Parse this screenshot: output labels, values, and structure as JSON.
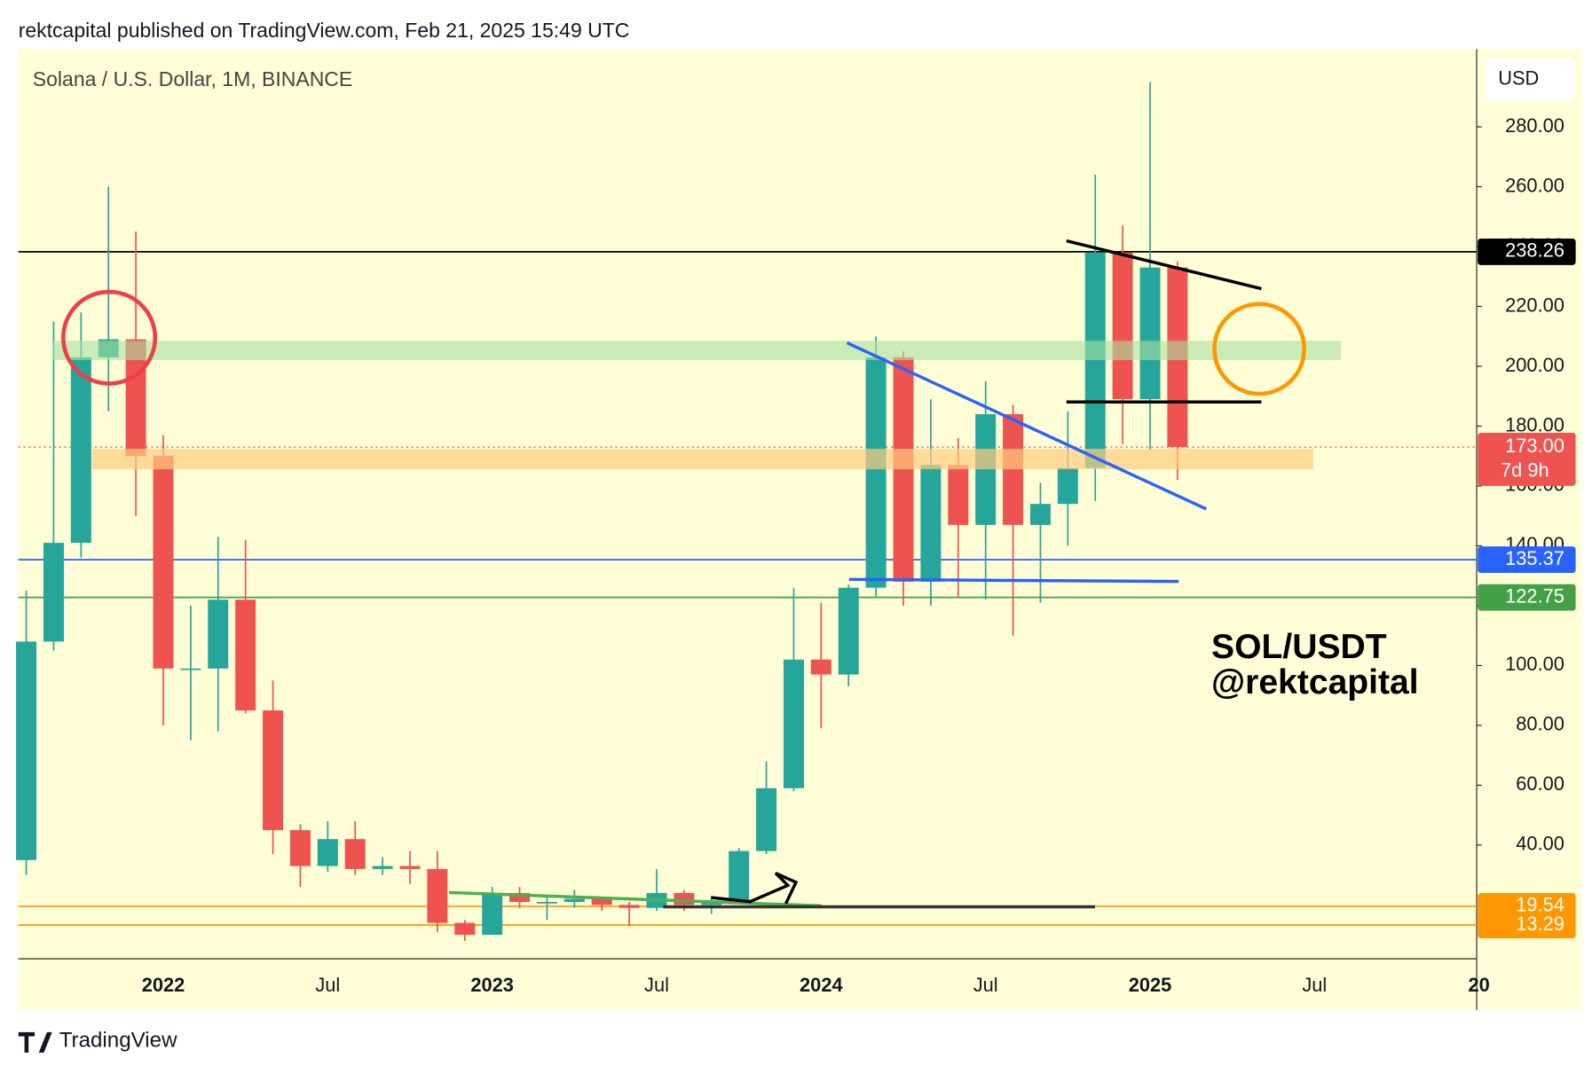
{
  "header": "rektcapital published on TradingView.com, Feb 21, 2025 15:49 UTC",
  "footer": "TradingView",
  "chart_data": {
    "type": "candlestick",
    "title": "Solana / U.S. Dollar, 1M, BINANCE",
    "currency": "USD",
    "annotations": [
      "SOL/USDT",
      "@rektcapital"
    ],
    "countdown": "7d 9h",
    "up_color": "#26a69a",
    "down_color": "#ef5350",
    "x": [
      "2021-08",
      "2021-09",
      "2021-10",
      "2021-11",
      "2021-12",
      "2022-01",
      "2022-02",
      "2022-03",
      "2022-04",
      "2022-05",
      "2022-06",
      "2022-07",
      "2022-08",
      "2022-09",
      "2022-10",
      "2022-11",
      "2022-12",
      "2023-01",
      "2023-02",
      "2023-03",
      "2023-04",
      "2023-05",
      "2023-06",
      "2023-07",
      "2023-08",
      "2023-09",
      "2023-10",
      "2023-11",
      "2023-12",
      "2024-01",
      "2024-02",
      "2024-03",
      "2024-04",
      "2024-05",
      "2024-06",
      "2024-07",
      "2024-08",
      "2024-09",
      "2024-10",
      "2024-11",
      "2024-12",
      "2025-01",
      "2025-02"
    ],
    "open": [
      35,
      108,
      141,
      203,
      209,
      170,
      99,
      99,
      122,
      85,
      45,
      33,
      42,
      32,
      33,
      32,
      14,
      10,
      24,
      21,
      21,
      22,
      20,
      19,
      24,
      20,
      21,
      38,
      59,
      102,
      97,
      126,
      203,
      128,
      167,
      147,
      184,
      147,
      154,
      166,
      238,
      189,
      233
    ],
    "high": [
      125,
      215,
      218,
      260,
      245,
      177,
      120,
      143,
      142,
      95,
      47,
      48,
      48,
      36,
      38,
      38,
      15,
      26,
      26,
      23,
      25,
      22,
      21,
      32,
      25,
      23,
      39,
      68,
      126,
      121,
      127,
      210,
      205,
      189,
      176,
      195,
      187,
      161,
      185,
      264,
      247,
      295,
      235
    ],
    "low": [
      30,
      105,
      136,
      185,
      150,
      80,
      75,
      78,
      84,
      37,
      26,
      31,
      30,
      30,
      27,
      11,
      8,
      10,
      19,
      15,
      19,
      18,
      13,
      18,
      18,
      17,
      21,
      37,
      58,
      79,
      93,
      123,
      120,
      120,
      123,
      122,
      110,
      121,
      140,
      155,
      174,
      172,
      162
    ],
    "close": [
      108,
      141,
      203,
      209,
      170,
      99,
      99,
      122,
      85,
      45,
      33,
      42,
      32,
      33,
      32,
      14,
      10,
      24,
      21,
      21,
      22,
      20,
      19,
      24,
      20,
      21,
      38,
      59,
      102,
      97,
      126,
      203,
      128,
      167,
      147,
      184,
      147,
      154,
      166,
      238,
      189,
      233,
      173
    ],
    "xticks": [
      {
        "value": "2022-01",
        "label": "2022"
      },
      {
        "value": "2022-07",
        "label": "Jul"
      },
      {
        "value": "2023-01",
        "label": "2023"
      },
      {
        "value": "2023-07",
        "label": "Jul"
      },
      {
        "value": "2024-01",
        "label": "2024"
      },
      {
        "value": "2024-07",
        "label": "Jul"
      },
      {
        "value": "2025-01",
        "label": "2025"
      },
      {
        "value": "2025-07",
        "label": "Jul"
      },
      {
        "value": "2026-01",
        "label": "20"
      }
    ],
    "ylim": [
      2,
      306
    ],
    "yticks": [
      {
        "value": 40,
        "label": "40.00"
      },
      {
        "value": 60,
        "label": "60.00"
      },
      {
        "value": 80,
        "label": "80.00"
      },
      {
        "value": 100,
        "label": "100.00"
      },
      {
        "value": 120,
        "label": "120.00"
      },
      {
        "value": 140,
        "label": "140.00"
      },
      {
        "value": 160,
        "label": "160.00"
      },
      {
        "value": 180,
        "label": "180.00"
      },
      {
        "value": 200,
        "label": "200.00"
      },
      {
        "value": 220,
        "label": "220.00"
      },
      {
        "value": 240,
        "label": "240.00"
      },
      {
        "value": 260,
        "label": "260.00"
      },
      {
        "value": 280,
        "label": "280.00"
      }
    ],
    "levels": [
      {
        "value": 238.26,
        "color": "#000000"
      },
      {
        "value": 135.37,
        "color": "#2962ff"
      },
      {
        "value": 122.75,
        "color": "#43a047"
      },
      {
        "value": 19.54,
        "color": "#ff9800"
      },
      {
        "value": 13.29,
        "color": "#ff9800"
      }
    ],
    "last_price": {
      "value": 173,
      "label": "173.00",
      "color": "#ef5350"
    }
  }
}
